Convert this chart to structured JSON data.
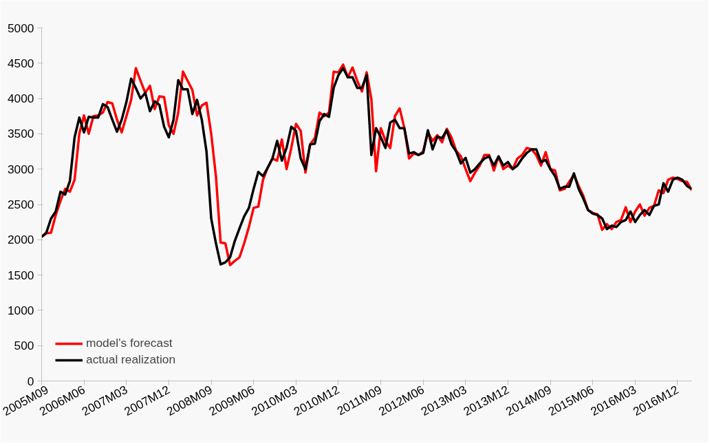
{
  "chart_data": {
    "type": "line",
    "categories": [
      "2005M09",
      null,
      null,
      null,
      null,
      null,
      null,
      null,
      null,
      "2006M06",
      null,
      null,
      null,
      null,
      null,
      null,
      null,
      null,
      "2007M03",
      null,
      null,
      null,
      null,
      null,
      null,
      null,
      null,
      "2007M12",
      null,
      null,
      null,
      null,
      null,
      null,
      null,
      null,
      "2008M09",
      null,
      null,
      null,
      null,
      null,
      null,
      null,
      null,
      "2009M06",
      null,
      null,
      null,
      null,
      null,
      null,
      null,
      null,
      "2010M03",
      null,
      null,
      null,
      null,
      null,
      null,
      null,
      null,
      "2010M12",
      null,
      null,
      null,
      null,
      null,
      null,
      null,
      null,
      "2011M09",
      null,
      null,
      null,
      null,
      null,
      null,
      null,
      null,
      "2012M06",
      null,
      null,
      null,
      null,
      null,
      null,
      null,
      null,
      "2013M03",
      null,
      null,
      null,
      null,
      null,
      null,
      null,
      null,
      "2013M12",
      null,
      null,
      null,
      null,
      null,
      null,
      null,
      null,
      "2014M09",
      null,
      null,
      null,
      null,
      null,
      null,
      null,
      null,
      "2015M06",
      null,
      null,
      null,
      null,
      null,
      null,
      null,
      null,
      "2016M03",
      null,
      null,
      null,
      null,
      null,
      null,
      null,
      null,
      "2016M12",
      null,
      null,
      null
    ],
    "series": [
      {
        "name": "model's forecast",
        "color": "#ff0000",
        "values": [
          2040,
          2090,
          2100,
          2350,
          2550,
          2720,
          2680,
          2850,
          3500,
          3760,
          3500,
          3750,
          3760,
          3800,
          3950,
          3930,
          3700,
          3520,
          3750,
          3980,
          4430,
          4250,
          4080,
          4180,
          3850,
          4030,
          4020,
          3620,
          3500,
          3800,
          4380,
          4250,
          4120,
          3760,
          3900,
          3940,
          3500,
          2900,
          1960,
          1950,
          1640,
          1700,
          1750,
          1950,
          2180,
          2450,
          2470,
          2850,
          3020,
          3150,
          3120,
          3420,
          3000,
          3300,
          3640,
          3540,
          2950,
          3350,
          3440,
          3800,
          3750,
          3800,
          4380,
          4370,
          4480,
          4300,
          4440,
          4250,
          4100,
          4370,
          3990,
          2970,
          3580,
          3400,
          3300,
          3750,
          3860,
          3580,
          3150,
          3220,
          3200,
          3250,
          3520,
          3400,
          3480,
          3380,
          3570,
          3450,
          3260,
          3180,
          3000,
          2830,
          2950,
          3050,
          3200,
          3200,
          2980,
          3180,
          3000,
          3050,
          3000,
          3150,
          3200,
          3300,
          3280,
          3200,
          3050,
          3240,
          3000,
          2980,
          2700,
          2720,
          2820,
          2920,
          2760,
          2620,
          2420,
          2380,
          2360,
          2140,
          2220,
          2150,
          2250,
          2280,
          2460,
          2250,
          2400,
          2500,
          2340,
          2450,
          2480,
          2700,
          2660,
          2850,
          2880,
          2860,
          2830,
          2820,
          2700
        ]
      },
      {
        "name": "actual realization",
        "color": "#000000",
        "values": [
          2040,
          2100,
          2300,
          2400,
          2680,
          2640,
          2830,
          3450,
          3730,
          3520,
          3740,
          3730,
          3730,
          3920,
          3880,
          3700,
          3530,
          3700,
          3950,
          4280,
          4150,
          4000,
          4080,
          3820,
          3960,
          3910,
          3600,
          3450,
          3700,
          4260,
          4130,
          4130,
          3780,
          3980,
          3700,
          3250,
          2300,
          1950,
          1650,
          1680,
          1750,
          1980,
          2160,
          2330,
          2450,
          2720,
          2960,
          2900,
          3020,
          3150,
          3400,
          3120,
          3300,
          3600,
          3540,
          3150,
          3000,
          3350,
          3360,
          3680,
          3780,
          3740,
          4150,
          4330,
          4430,
          4300,
          4300,
          4150,
          4150,
          4330,
          3200,
          3580,
          3450,
          3300,
          3660,
          3700,
          3580,
          3580,
          3220,
          3240,
          3200,
          3230,
          3550,
          3280,
          3460,
          3440,
          3550,
          3350,
          3250,
          3080,
          3160,
          2950,
          3000,
          3080,
          3150,
          3180,
          3050,
          3180,
          3050,
          3100,
          3000,
          3050,
          3150,
          3230,
          3280,
          3280,
          3100,
          3130,
          3000,
          2900,
          2720,
          2750,
          2750,
          2940,
          2720,
          2580,
          2420,
          2370,
          2350,
          2300,
          2150,
          2200,
          2180,
          2250,
          2280,
          2400,
          2250,
          2350,
          2420,
          2350,
          2480,
          2500,
          2800,
          2680,
          2850,
          2880,
          2850,
          2760,
          2720
        ]
      }
    ],
    "ylim": [
      0,
      5000
    ],
    "yticks": [
      0,
      500,
      1000,
      1500,
      2000,
      2500,
      3000,
      3500,
      4000,
      4500,
      5000
    ],
    "grid": false,
    "legend": "bottom left",
    "line_style": "solid",
    "marker": "none"
  }
}
